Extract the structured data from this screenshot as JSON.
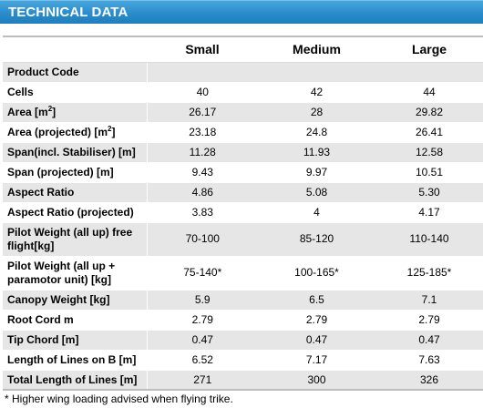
{
  "title": "TECHNICAL DATA",
  "columns": [
    "",
    "Small",
    "Medium",
    "Large"
  ],
  "rows": [
    {
      "label": "Product Code",
      "values": [
        "",
        "",
        ""
      ],
      "tall": false
    },
    {
      "label": "Cells",
      "values": [
        "40",
        "42",
        "44"
      ],
      "tall": false
    },
    {
      "label": "Area [m",
      "sup": "2",
      "label_end": "]",
      "values": [
        "26.17",
        "28",
        "29.82"
      ],
      "tall": false
    },
    {
      "label": "Area (projected) [m",
      "sup": "2",
      "label_end": "]",
      "values": [
        "23.18",
        "24.8",
        "26.41"
      ],
      "tall": false
    },
    {
      "label": "Span(incl. Stabiliser) [m]",
      "values": [
        "11.28",
        "11.93",
        "12.58"
      ],
      "tall": false
    },
    {
      "label": "Span (projected) [m]",
      "values": [
        "9.43",
        "9.97",
        "10.51"
      ],
      "tall": false
    },
    {
      "label": "Aspect Ratio",
      "values": [
        "4.86",
        "5.08",
        "5.30"
      ],
      "tall": false
    },
    {
      "label": "Aspect Ratio (projected)",
      "values": [
        "3.83",
        "4",
        "4.17"
      ],
      "tall": false
    },
    {
      "label": "Pilot Weight (all up) free flight[kg]",
      "values": [
        "70-100",
        "85-120",
        "110-140"
      ],
      "tall": true
    },
    {
      "label": "Pilot Weight (all up + paramotor unit) [kg]",
      "values": [
        "75-140*",
        "100-165*",
        "125-185*"
      ],
      "tall": true
    },
    {
      "label": "Canopy Weight [kg]",
      "values": [
        "5.9",
        "6.5",
        "7.1"
      ],
      "tall": false
    },
    {
      "label": "Root Cord m",
      "values": [
        "2.79",
        "2.79",
        "2.79"
      ],
      "tall": false
    },
    {
      "label": "Tip Chord [m]",
      "values": [
        "0.47",
        "0.47",
        "0.47"
      ],
      "tall": false
    },
    {
      "label": "Length of Lines on B [m]",
      "values": [
        "6.52",
        "7.17",
        "7.63"
      ],
      "tall": false
    },
    {
      "label": "Total Length of Lines [m]",
      "values": [
        "271",
        "300",
        "326"
      ],
      "tall": false
    }
  ],
  "footnote": "* Higher wing loading advised when flying trike.",
  "colors": {
    "title_bar": "#2a8ccb",
    "row_stripe": "#e6e6e6"
  }
}
